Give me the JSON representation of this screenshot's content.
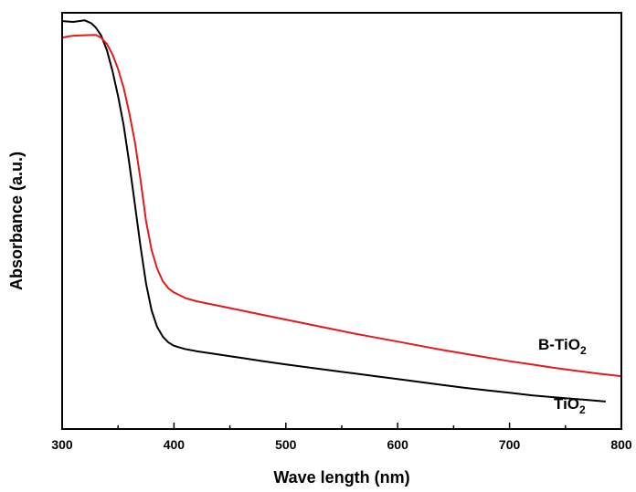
{
  "chart_data": {
    "type": "line",
    "title": "",
    "xlabel": "Wave length (nm)",
    "ylabel": "Absorbance (a.u.)",
    "xlim": [
      300,
      800
    ],
    "ylim": [
      0,
      1
    ],
    "xticks": [
      300,
      400,
      500,
      600,
      700,
      800
    ],
    "xtick_labels": [
      "300",
      "400",
      "500",
      "600",
      "700",
      "800"
    ],
    "yticks_labeled": false,
    "grid": false,
    "series": [
      {
        "name": "TiO2",
        "label_main": "TiO",
        "label_sub": "2",
        "color": "#000000",
        "points": [
          [
            300,
            0.98
          ],
          [
            310,
            0.978
          ],
          [
            320,
            0.982
          ],
          [
            326,
            0.975
          ],
          [
            330,
            0.965
          ],
          [
            335,
            0.945
          ],
          [
            340,
            0.91
          ],
          [
            345,
            0.86
          ],
          [
            350,
            0.8
          ],
          [
            355,
            0.73
          ],
          [
            360,
            0.64
          ],
          [
            365,
            0.54
          ],
          [
            370,
            0.44
          ],
          [
            375,
            0.35
          ],
          [
            380,
            0.285
          ],
          [
            385,
            0.245
          ],
          [
            390,
            0.222
          ],
          [
            395,
            0.208
          ],
          [
            400,
            0.2
          ],
          [
            410,
            0.192
          ],
          [
            420,
            0.187
          ],
          [
            440,
            0.179
          ],
          [
            460,
            0.171
          ],
          [
            480,
            0.163
          ],
          [
            500,
            0.155
          ],
          [
            520,
            0.148
          ],
          [
            540,
            0.141
          ],
          [
            560,
            0.134
          ],
          [
            580,
            0.127
          ],
          [
            600,
            0.12
          ],
          [
            620,
            0.113
          ],
          [
            640,
            0.106
          ],
          [
            660,
            0.099
          ],
          [
            680,
            0.093
          ],
          [
            700,
            0.087
          ],
          [
            720,
            0.081
          ],
          [
            740,
            0.076
          ],
          [
            760,
            0.072
          ],
          [
            786,
            0.066
          ]
        ]
      },
      {
        "name": "B-TiO2",
        "label_main": "B-TiO",
        "label_sub": "2",
        "color": "#e31a1c",
        "points": [
          [
            300,
            0.94
          ],
          [
            305,
            0.943
          ],
          [
            310,
            0.945
          ],
          [
            320,
            0.946
          ],
          [
            330,
            0.947
          ],
          [
            335,
            0.94
          ],
          [
            340,
            0.925
          ],
          [
            345,
            0.9
          ],
          [
            350,
            0.865
          ],
          [
            355,
            0.82
          ],
          [
            360,
            0.76
          ],
          [
            365,
            0.69
          ],
          [
            370,
            0.6
          ],
          [
            375,
            0.5
          ],
          [
            380,
            0.43
          ],
          [
            385,
            0.385
          ],
          [
            390,
            0.355
          ],
          [
            395,
            0.338
          ],
          [
            400,
            0.328
          ],
          [
            410,
            0.315
          ],
          [
            420,
            0.307
          ],
          [
            440,
            0.296
          ],
          [
            460,
            0.285
          ],
          [
            480,
            0.274
          ],
          [
            500,
            0.263
          ],
          [
            520,
            0.252
          ],
          [
            540,
            0.241
          ],
          [
            560,
            0.23
          ],
          [
            580,
            0.22
          ],
          [
            600,
            0.21
          ],
          [
            620,
            0.2
          ],
          [
            640,
            0.19
          ],
          [
            660,
            0.181
          ],
          [
            680,
            0.172
          ],
          [
            700,
            0.163
          ],
          [
            720,
            0.155
          ],
          [
            740,
            0.147
          ],
          [
            760,
            0.14
          ],
          [
            780,
            0.133
          ],
          [
            800,
            0.127
          ]
        ]
      }
    ]
  }
}
